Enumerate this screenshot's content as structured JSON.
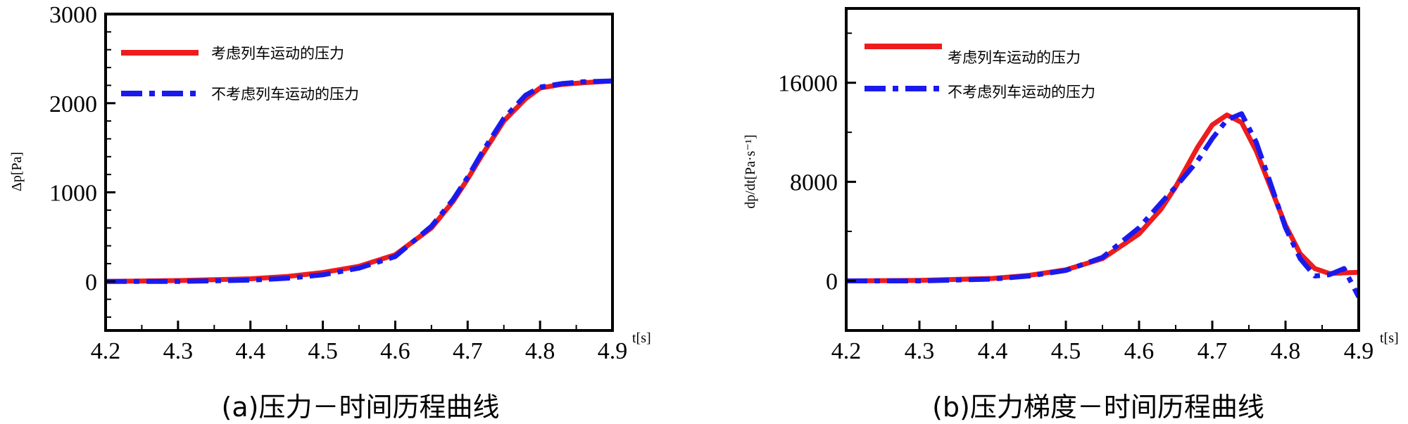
{
  "chart_data": [
    {
      "type": "line",
      "caption": "(a)压力－时间历程曲线",
      "xlabel": "t[s]",
      "ylabel": "Δp[Pa]",
      "xlim": [
        4.2,
        4.9
      ],
      "ylim": [
        -550,
        3000
      ],
      "xticks": [
        4.2,
        4.3,
        4.4,
        4.5,
        4.6,
        4.7,
        4.8,
        4.9
      ],
      "yticks": [
        0,
        1000,
        2000,
        3000
      ],
      "legend": "top-left",
      "series": [
        {
          "name": "考虑列车运动的压力",
          "color": "#ee1c1c",
          "style": "solid",
          "x": [
            4.2,
            4.3,
            4.4,
            4.45,
            4.5,
            4.55,
            4.6,
            4.65,
            4.68,
            4.7,
            4.72,
            4.75,
            4.78,
            4.8,
            4.83,
            4.86,
            4.9
          ],
          "y": [
            0,
            10,
            30,
            55,
            100,
            170,
            300,
            600,
            900,
            1150,
            1420,
            1800,
            2050,
            2170,
            2210,
            2230,
            2250
          ]
        },
        {
          "name": "不考虑列车运动的压力",
          "color": "#1a1aee",
          "style": "dashdot",
          "x": [
            4.2,
            4.3,
            4.4,
            4.45,
            4.5,
            4.55,
            4.6,
            4.65,
            4.68,
            4.7,
            4.72,
            4.75,
            4.78,
            4.8,
            4.83,
            4.86,
            4.9
          ],
          "y": [
            0,
            0,
            15,
            35,
            75,
            150,
            280,
            620,
            920,
            1170,
            1450,
            1830,
            2090,
            2180,
            2220,
            2240,
            2250
          ]
        }
      ]
    },
    {
      "type": "line",
      "caption": "(b)压力梯度－时间历程曲线",
      "xlabel": "t[s]",
      "ylabel": "dp/dt[Pa·s⁻¹]",
      "xlim": [
        4.2,
        4.9
      ],
      "ylim": [
        -4000,
        22000
      ],
      "xticks": [
        4.2,
        4.3,
        4.4,
        4.5,
        4.6,
        4.7,
        4.8,
        4.9
      ],
      "yticks": [
        0,
        8000,
        16000
      ],
      "legend": "top-left",
      "series": [
        {
          "name": "考虑列车运动的压力",
          "color": "#ee1c1c",
          "style": "solid",
          "x": [
            4.2,
            4.3,
            4.4,
            4.45,
            4.5,
            4.55,
            4.6,
            4.63,
            4.65,
            4.68,
            4.7,
            4.72,
            4.74,
            4.76,
            4.78,
            4.8,
            4.82,
            4.84,
            4.86,
            4.9
          ],
          "y": [
            0,
            50,
            200,
            450,
            900,
            1800,
            3800,
            5800,
            7600,
            10800,
            12600,
            13400,
            12800,
            10500,
            7500,
            4500,
            2200,
            1000,
            600,
            700
          ]
        },
        {
          "name": "不考虑列车运动的压力",
          "color": "#1a1aee",
          "style": "dashdot",
          "x": [
            4.2,
            4.3,
            4.4,
            4.45,
            4.5,
            4.55,
            4.6,
            4.63,
            4.65,
            4.68,
            4.7,
            4.72,
            4.74,
            4.76,
            4.78,
            4.8,
            4.82,
            4.84,
            4.86,
            4.88,
            4.9
          ],
          "y": [
            0,
            0,
            150,
            400,
            850,
            1900,
            4300,
            6300,
            7600,
            9700,
            11500,
            13000,
            13500,
            11200,
            7800,
            4300,
            1800,
            400,
            500,
            1000,
            -1300
          ]
        }
      ]
    }
  ]
}
